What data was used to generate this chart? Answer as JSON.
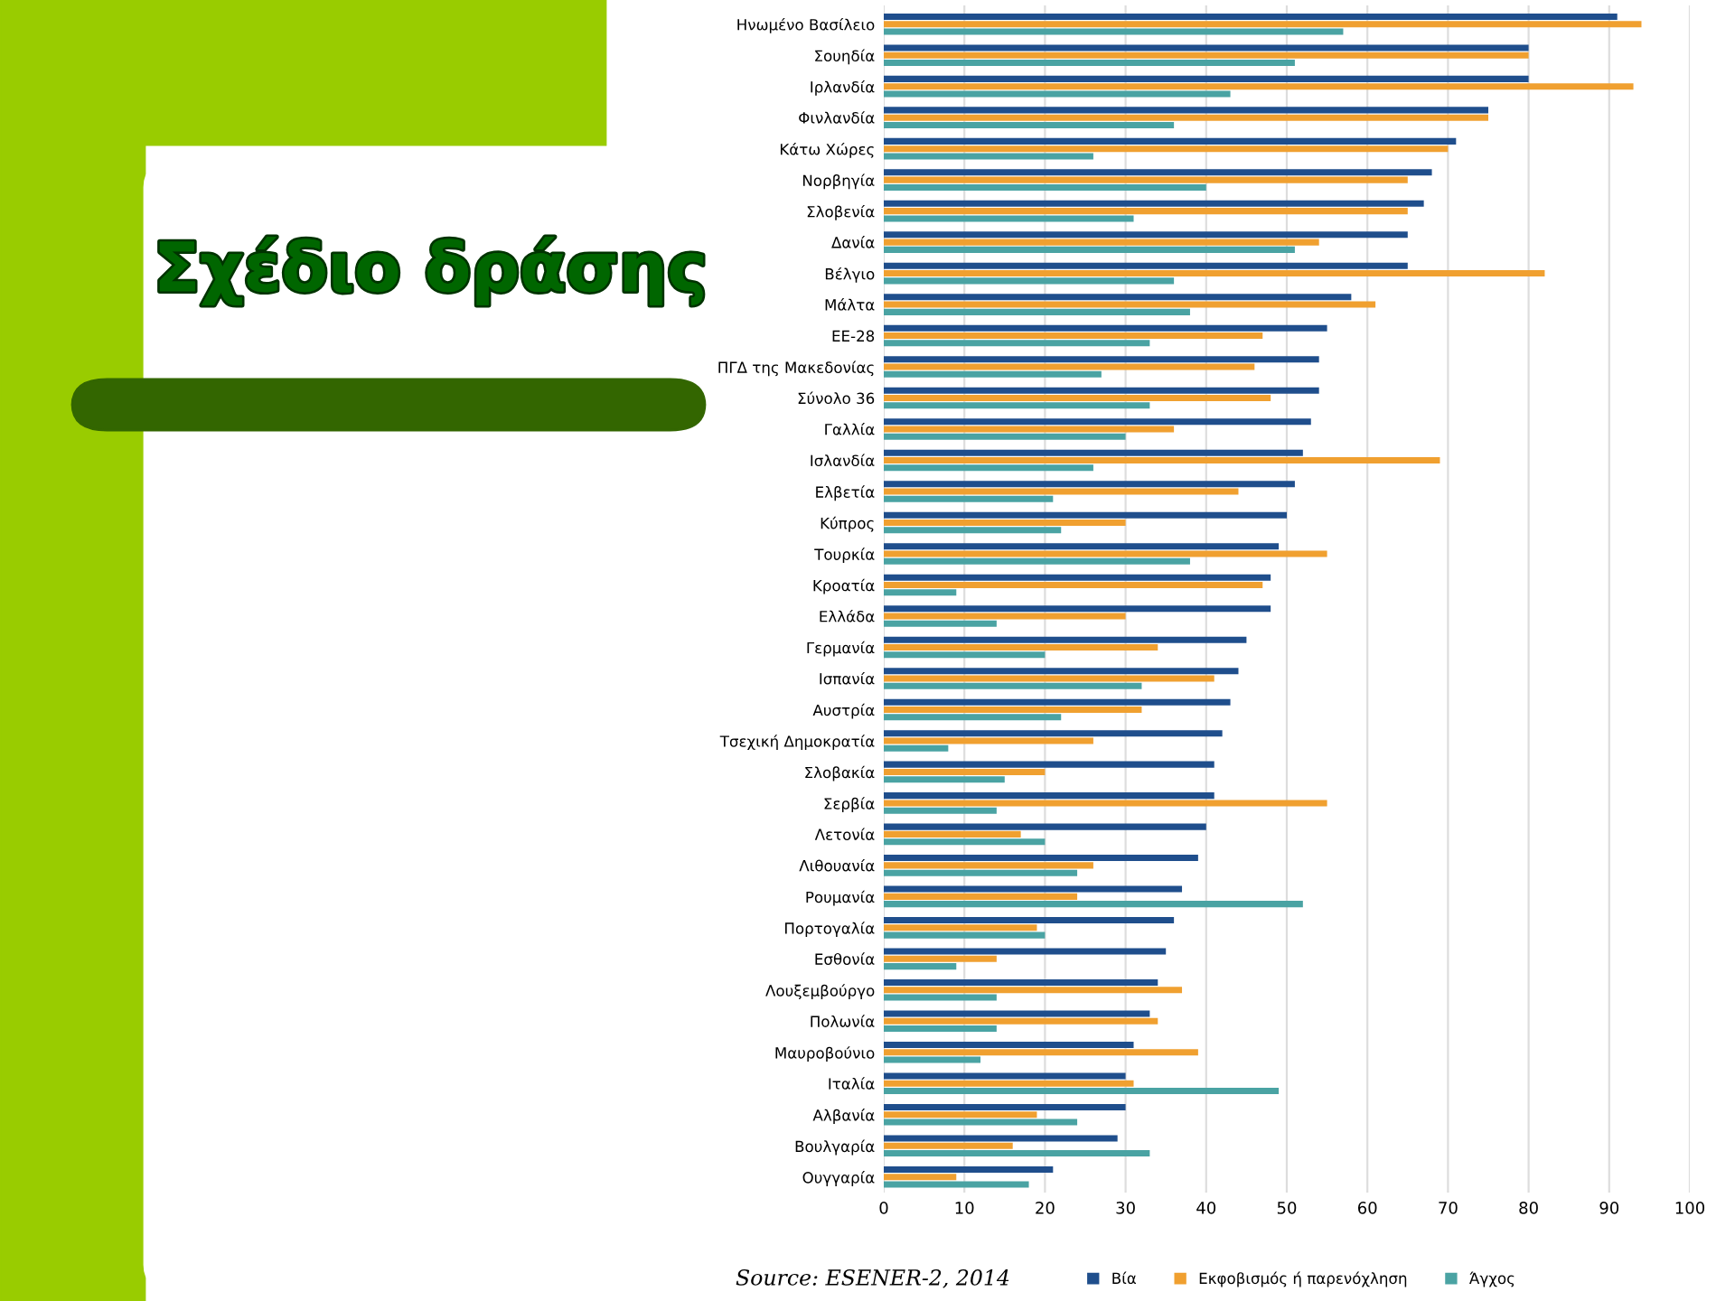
{
  "chart_data": {
    "type": "bar",
    "orientation": "horizontal",
    "title": "Σχέδιο δράσης",
    "categories": [
      "Ηνωμένο Βασίλειο",
      "Σουηδία",
      "Ιρλανδία",
      "Φινλανδία",
      "Κάτω Χώρες",
      "Νορβηγία",
      "Σλοβενία",
      "Δανία",
      "Βέλγιο",
      "Μάλτα",
      "ΕΕ-28",
      "ΠΓΔ της Μακεδονίας",
      "Σύνολο 36",
      "Γαλλία",
      "Ισλανδία",
      "Ελβετία",
      "Κύπρος",
      "Τουρκία",
      "Κροατία",
      "Ελλάδα",
      "Γερμανία",
      "Ισπανία",
      "Αυστρία",
      "Τσεχική Δημοκρατία",
      "Σλοβακία",
      "Σερβία",
      "Λετονία",
      "Λιθουανία",
      "Ρουμανία",
      "Πορτογαλία",
      "Εσθονία",
      "Λουξεμβούργο",
      "Πολωνία",
      "Μαυροβούνιο",
      "Ιταλία",
      "Αλβανία",
      "Βουλγαρία",
      "Ουγγαρία"
    ],
    "series": [
      {
        "name": "Βία",
        "color": "#1f4e8c",
        "values": [
          91,
          80,
          80,
          75,
          71,
          68,
          67,
          65,
          65,
          58,
          55,
          54,
          54,
          53,
          52,
          51,
          50,
          49,
          48,
          48,
          45,
          44,
          43,
          42,
          41,
          41,
          40,
          39,
          37,
          36,
          35,
          34,
          33,
          31,
          30,
          30,
          29,
          21
        ]
      },
      {
        "name": "Εκφοβισμός ή παρενόχληση",
        "color": "#f0a030",
        "values": [
          94,
          80,
          93,
          75,
          70,
          65,
          65,
          54,
          82,
          61,
          47,
          46,
          48,
          36,
          69,
          44,
          30,
          55,
          47,
          30,
          34,
          41,
          32,
          26,
          20,
          55,
          17,
          26,
          24,
          19,
          14,
          37,
          34,
          39,
          31,
          19,
          16,
          9
        ]
      },
      {
        "name": "Άγχος",
        "color": "#4aa3a3",
        "values": [
          57,
          51,
          43,
          36,
          26,
          40,
          31,
          51,
          36,
          38,
          33,
          27,
          33,
          30,
          26,
          21,
          22,
          38,
          9,
          14,
          20,
          32,
          22,
          8,
          15,
          14,
          20,
          24,
          52,
          20,
          9,
          14,
          14,
          12,
          49,
          24,
          33,
          18
        ]
      }
    ],
    "xlim": [
      0,
      100
    ],
    "xticks": [
      0,
      10,
      20,
      30,
      40,
      50,
      60,
      70,
      80,
      90,
      100
    ],
    "grid": "x",
    "legend": "bottom",
    "annotations": [
      "Source: ESENER-2, 2014"
    ]
  }
}
